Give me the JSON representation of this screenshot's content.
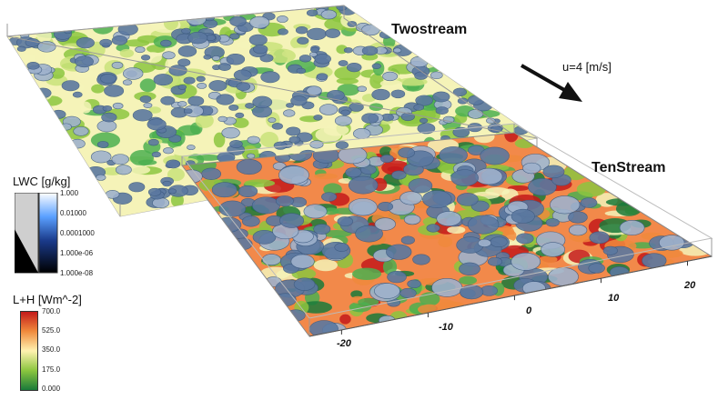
{
  "panels": {
    "top": {
      "label": "Twostream"
    },
    "bottom": {
      "label": "TenStream"
    }
  },
  "wind": {
    "label": "u=4 [m/s]"
  },
  "lwc_legend": {
    "title": "LWC [g/kg]",
    "ticks": [
      "1.000",
      "0.01000",
      "0.0001000",
      "1.000e-06",
      "1.000e-08"
    ]
  },
  "flux_legend": {
    "title": "L+H [Wm^-2]",
    "ticks": [
      "700.0",
      "525.0",
      "350.0",
      "175.0",
      "0.000"
    ],
    "colors": [
      "#c41a1a",
      "#f08a3c",
      "#fff2b0",
      "#8cc63f",
      "#1a7a3a"
    ]
  },
  "axis": {
    "ticks": [
      "-20",
      "-10",
      "0",
      "10",
      "20"
    ]
  },
  "colors": {
    "cloud": "#5b78a0",
    "cloud_light": "#9fb2cc",
    "ground_pale": "#f5f3b8",
    "ground_green": "#4caf50",
    "ground_orange": "#f2894a"
  }
}
